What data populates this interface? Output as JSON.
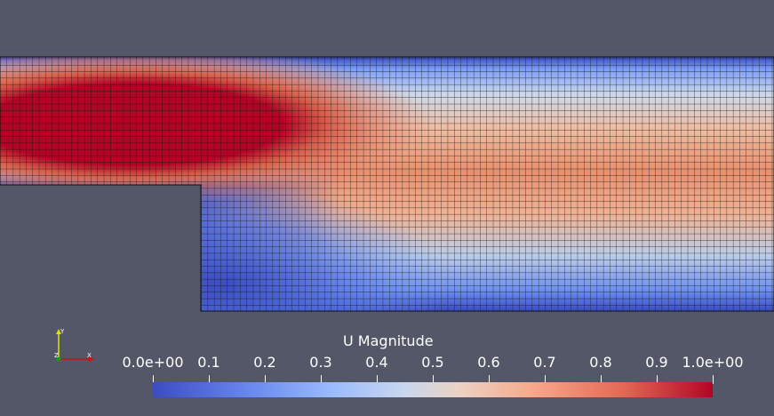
{
  "colorbar": {
    "title": "U Magnitude",
    "ticks": [
      "0.0e+00",
      "0.1",
      "0.2",
      "0.3",
      "0.4",
      "0.5",
      "0.6",
      "0.7",
      "0.8",
      "0.9",
      "1.0e+00"
    ],
    "range": [
      0.0,
      1.0
    ],
    "colors": {
      "low": "#3b4cc0",
      "mid": "#dddddd",
      "high": "#b40426"
    }
  },
  "axes": {
    "y_label": "Y",
    "z_label": "Z",
    "x_label": "X"
  },
  "background_color": "#535768"
}
